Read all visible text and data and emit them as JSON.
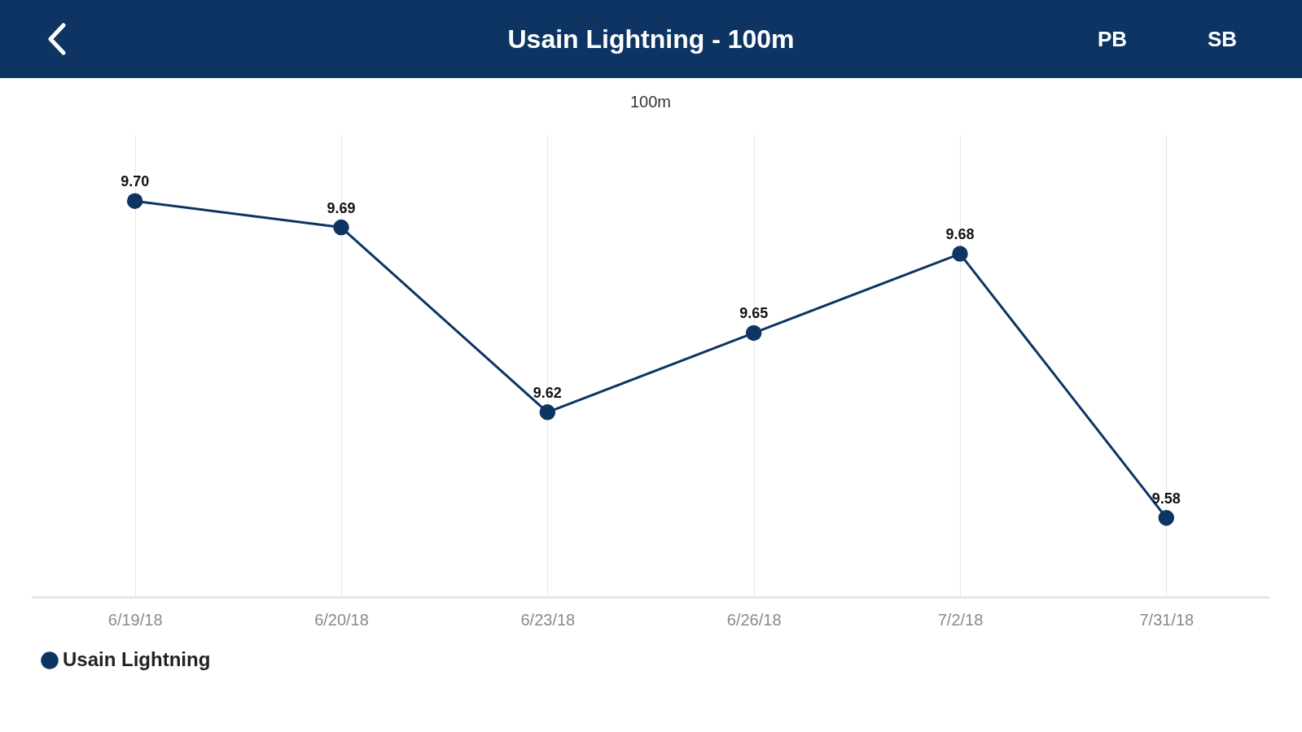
{
  "chart_data": {
    "type": "line",
    "title": "Usain Lightning - 100m",
    "subtitle": "100m",
    "annotations": [
      "PB",
      "SB"
    ],
    "categories": [
      "6/19/18",
      "6/20/18",
      "6/23/18",
      "6/26/18",
      "7/2/18",
      "7/31/18"
    ],
    "series": [
      {
        "name": "Usain Lightning",
        "color": "#0d3463",
        "values": [
          9.7,
          9.69,
          9.62,
          9.65,
          9.68,
          9.58
        ],
        "value_labels": [
          "9.70",
          "9.69",
          "9.62",
          "9.65",
          "9.68",
          "9.58"
        ]
      }
    ],
    "ylim": [
      9.55,
      9.725
    ],
    "tick_labels": "x",
    "grid": "x",
    "legend": "bottom",
    "marker": "circle",
    "line_style": "solid"
  }
}
